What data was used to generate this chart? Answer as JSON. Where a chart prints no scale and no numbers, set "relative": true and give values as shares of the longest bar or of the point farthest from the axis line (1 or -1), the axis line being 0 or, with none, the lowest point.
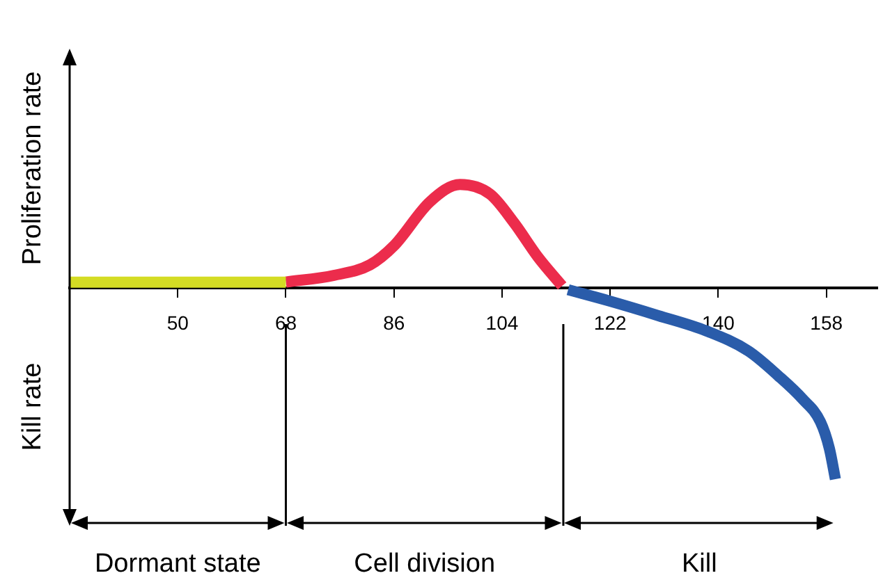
{
  "chart_data": {
    "type": "line",
    "relative": true,
    "ylabel": "Proliferation rate",
    "annotations": [
      "Kill rate",
      "Dormant state",
      "Cell division",
      "Kill"
    ],
    "xlim": [
      32,
      166.5
    ],
    "xticks": [
      50,
      68,
      86,
      104,
      122,
      140,
      158
    ],
    "grid": false,
    "marker": "none",
    "line_style": "solid",
    "series": [
      {
        "color": "#d4dc24",
        "x": [
          32,
          68
        ],
        "values": [
          0.03,
          0.03
        ]
      },
      {
        "color": "#ec2c4c",
        "x": [
          68,
          76,
          82,
          86,
          92,
          97,
          102,
          106,
          110,
          114
        ],
        "values": [
          0.03,
          0.065,
          0.12,
          0.22,
          0.45,
          0.54,
          0.49,
          0.34,
          0.16,
          0.01
        ]
      },
      {
        "color": "#2a5caa",
        "x": [
          115,
          122,
          130,
          138,
          145,
          150,
          154,
          157,
          158.5,
          159.5
        ],
        "values": [
          -0.01,
          -0.07,
          -0.145,
          -0.225,
          -0.33,
          -0.46,
          -0.58,
          -0.7,
          -0.84,
          -1
        ]
      }
    ],
    "ref_lines": [
      {
        "axis": "x",
        "value": 68
      },
      {
        "axis": "x",
        "value": 114.2
      }
    ]
  }
}
